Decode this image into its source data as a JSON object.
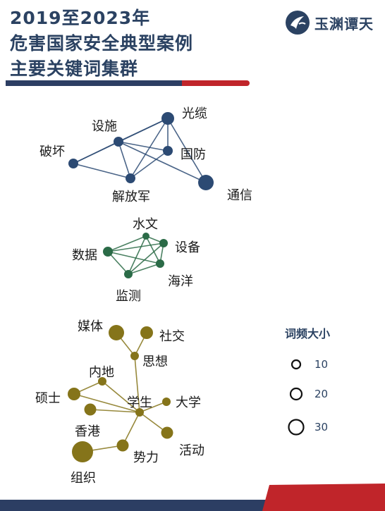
{
  "title_lines": [
    "2019至2023年",
    "危害国家安全典型案例",
    "主要关键词集群"
  ],
  "brand_text": "玉渊谭天",
  "legend": {
    "title": "词频大小",
    "items": [
      {
        "label": "10",
        "value": 10
      },
      {
        "label": "20",
        "value": 20
      },
      {
        "label": "30",
        "value": 30
      }
    ]
  },
  "clusters": [
    {
      "id": "infrastructure",
      "color": "#2c4a73",
      "nodes": [
        {
          "id": "guanglan",
          "label": "光缆",
          "size": 18
        },
        {
          "id": "sheshi",
          "label": "设施",
          "size": 14
        },
        {
          "id": "guofang",
          "label": "国防",
          "size": 14
        },
        {
          "id": "pohuai",
          "label": "破坏",
          "size": 14
        },
        {
          "id": "jiefangjun",
          "label": "解放军",
          "size": 14
        },
        {
          "id": "tongxin",
          "label": "通信",
          "size": 22
        }
      ],
      "edges": [
        [
          "sheshi",
          "guanglan"
        ],
        [
          "sheshi",
          "guofang"
        ],
        [
          "sheshi",
          "pohuai"
        ],
        [
          "sheshi",
          "jiefangjun"
        ],
        [
          "sheshi",
          "tongxin"
        ],
        [
          "guanglan",
          "guofang"
        ],
        [
          "guanglan",
          "jiefangjun"
        ],
        [
          "guanglan",
          "tongxin"
        ],
        [
          "guanglan",
          "pohuai"
        ],
        [
          "guofang",
          "jiefangjun"
        ],
        [
          "pohuai",
          "jiefangjun"
        ]
      ]
    },
    {
      "id": "ocean-data",
      "color": "#2b6b47",
      "nodes": [
        {
          "id": "shuiwen",
          "label": "水文",
          "size": 10
        },
        {
          "id": "shubei",
          "label": "设备",
          "size": 12
        },
        {
          "id": "shuju",
          "label": "数据",
          "size": 14
        },
        {
          "id": "haiyang",
          "label": "海洋",
          "size": 12
        },
        {
          "id": "jiance",
          "label": "监测",
          "size": 12
        }
      ],
      "edges": [
        [
          "shuju",
          "shuiwen"
        ],
        [
          "shuju",
          "shubei"
        ],
        [
          "shuju",
          "haiyang"
        ],
        [
          "shuju",
          "jiance"
        ],
        [
          "shuiwen",
          "shubei"
        ],
        [
          "shuiwen",
          "haiyang"
        ],
        [
          "shuiwen",
          "jiance"
        ],
        [
          "shubei",
          "haiyang"
        ],
        [
          "shubei",
          "jiance"
        ],
        [
          "haiyang",
          "jiance"
        ]
      ]
    },
    {
      "id": "ideology",
      "color": "#85741a",
      "nodes": [
        {
          "id": "meiti",
          "label": "媒体",
          "size": 22
        },
        {
          "id": "shejiao",
          "label": "社交",
          "size": 18
        },
        {
          "id": "sixiang",
          "label": "思想",
          "size": 12
        },
        {
          "id": "neidi",
          "label": "内地",
          "size": 12
        },
        {
          "id": "shuoshi",
          "label": "硕士",
          "size": 18
        },
        {
          "id": "xuesheng",
          "label": "学生",
          "size": 12
        },
        {
          "id": "daxue",
          "label": "大学",
          "size": 12
        },
        {
          "id": "xianggang",
          "label": "香港",
          "size": 17
        },
        {
          "id": "huodong",
          "label": "活动",
          "size": 17
        },
        {
          "id": "shili",
          "label": "势力",
          "size": 17
        },
        {
          "id": "zuzhi",
          "label": "组织",
          "size": 30
        }
      ],
      "edges": [
        [
          "meiti",
          "sixiang"
        ],
        [
          "shejiao",
          "sixiang"
        ],
        [
          "sixiang",
          "xuesheng"
        ],
        [
          "neidi",
          "xuesheng"
        ],
        [
          "neidi",
          "shuoshi"
        ],
        [
          "shuoshi",
          "xuesheng"
        ],
        [
          "xianggang",
          "xuesheng"
        ],
        [
          "daxue",
          "xuesheng"
        ],
        [
          "huodong",
          "xuesheng"
        ],
        [
          "shili",
          "xuesheng"
        ],
        [
          "zuzhi",
          "shili"
        ]
      ]
    }
  ]
}
